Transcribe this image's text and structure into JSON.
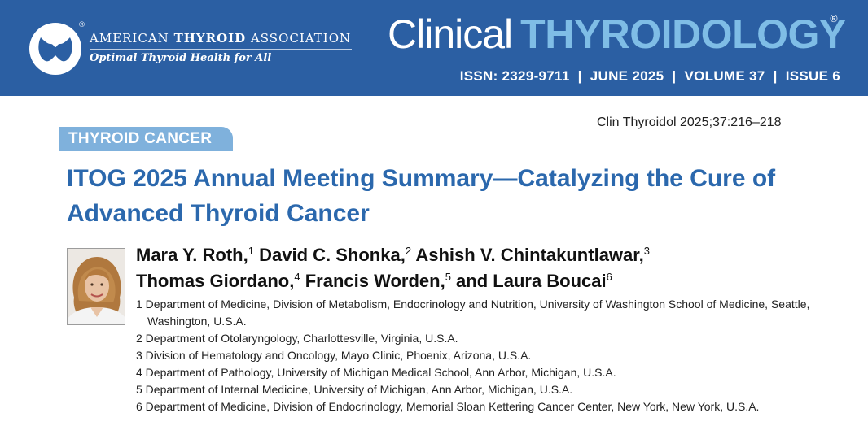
{
  "header": {
    "org_prefix": "AMERICAN ",
    "org_bold": "THYROID",
    "org_suffix": " ASSOCIATION",
    "org_tagline": "Optimal Thyroid Health for All",
    "journal_part1": "Clinical",
    "journal_part2": "THYROIDOLOGY",
    "registered_mark": "®",
    "issue_line": "ISSN: 2329-9711  |  JUNE 2025  |  VOLUME 37  |  ISSUE 6",
    "colors": {
      "band": "#2b5fa3",
      "accent": "#7fbde6"
    }
  },
  "article": {
    "citation": "Clin Thyroidol 2025;37:216–218",
    "section": "THYROID CANCER",
    "title": "ITOG 2025 Annual Meeting Summary—Catalyzing the Cure of Advanced Thyroid Cancer",
    "authors": [
      {
        "name": "Mara Y. Roth,",
        "sup": "1"
      },
      {
        "name": "David C. Shonka,",
        "sup": "2"
      },
      {
        "name": "Ashish V. Chintakuntlawar,",
        "sup": "3"
      },
      {
        "name": "Thomas Giordano,",
        "sup": "4"
      },
      {
        "name": "Francis Worden,",
        "sup": "5"
      },
      {
        "name": "and Laura Boucai",
        "sup": "6"
      }
    ],
    "affiliations": [
      "1 Department of Medicine, Division of Metabolism, Endocrinology and Nutrition, University of Washington School of Medicine, Seattle, Washington, U.S.A.",
      "2 Department of Otolaryngology, Charlottesville, Virginia, U.S.A.",
      "3 Division of Hematology and Oncology, Mayo Clinic, Phoenix, Arizona, U.S.A.",
      "4 Department of Pathology, University of Michigan Medical School, Ann Arbor, Michigan, U.S.A.",
      "5 Department of Internal Medicine, University of Michigan, Ann Arbor, Michigan, U.S.A.",
      "6 Department of Medicine, Division of Endocrinology, Memorial Sloan Kettering Cancer Center, New York, New York, U.S.A."
    ],
    "colors": {
      "title": "#2b68ad",
      "section_tab": "#7fb1dc"
    }
  }
}
